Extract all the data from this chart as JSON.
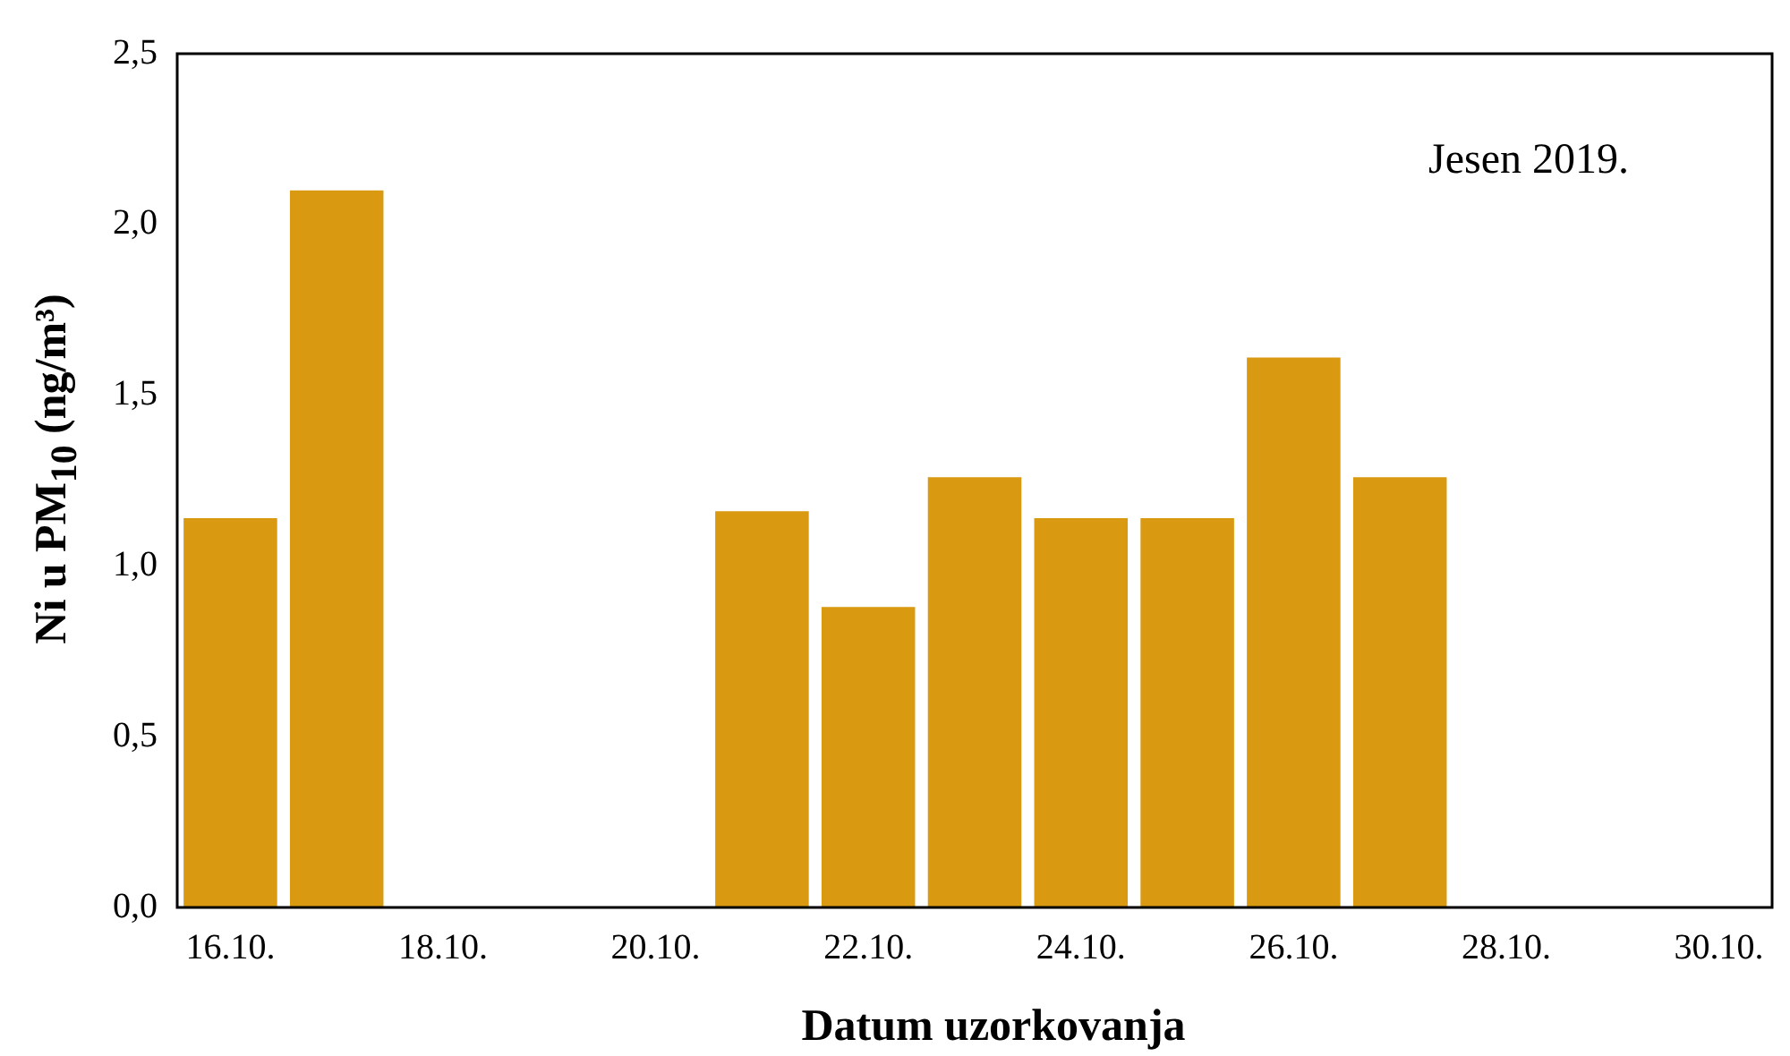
{
  "chart_data": {
    "type": "bar",
    "xlabel": "Datum uzorkovanja",
    "ylabel": "Ni u PM$_{10}$ (ng/m³)",
    "categories": [
      "16.10.",
      null,
      "18.10.",
      null,
      "20.10.",
      null,
      "22.10.",
      null,
      "24.10.",
      null,
      "26.10.",
      null,
      "28.10.",
      null,
      "30.10."
    ],
    "values": [
      1.14,
      2.1,
      null,
      null,
      null,
      1.16,
      0.88,
      1.26,
      1.14,
      1.14,
      1.61,
      1.26,
      null,
      null,
      null
    ],
    "color": "#d99a12",
    "ylim": [
      0,
      2.5
    ],
    "yticks": [
      {
        "value": 0,
        "label": "0,0"
      },
      {
        "value": 0.5,
        "label": "0,5"
      },
      {
        "value": 1,
        "label": "1,0"
      },
      {
        "value": 1.5,
        "label": "1,5"
      },
      {
        "value": 2,
        "label": "2,0"
      },
      {
        "value": 2.5,
        "label": "2,5"
      }
    ],
    "annotations": [
      "Jesen 2019."
    ],
    "grid": false,
    "legend": false
  }
}
